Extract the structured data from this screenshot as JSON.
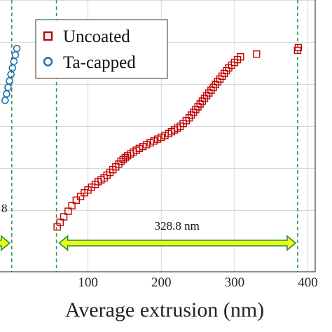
{
  "chart_data": {
    "type": "scatter",
    "xlabel": "Average extrusion (nm)",
    "ylabel": "",
    "title": "",
    "xlim": [
      -20,
      410
    ],
    "x_ticks": [
      "100",
      "200",
      "300",
      "400"
    ],
    "x_tick_values": [
      100,
      200,
      300,
      400
    ],
    "grid": true,
    "legend": "top-left",
    "series": [
      {
        "name": "Uncoated",
        "marker": "square",
        "color": "#c00000",
        "x": [
          58,
          62,
          67,
          73,
          78,
          84,
          90,
          95,
          100,
          105,
          110,
          114,
          118,
          122,
          126,
          130,
          134,
          138,
          142,
          145,
          148,
          151,
          154,
          158,
          162,
          166,
          170,
          175,
          180,
          185,
          190,
          195,
          200,
          205,
          210,
          214,
          218,
          222,
          226,
          230,
          234,
          238,
          241,
          244,
          247,
          250,
          253,
          256,
          259,
          262,
          265,
          268,
          271,
          274,
          277,
          280,
          283,
          286,
          289,
          292,
          296,
          300,
          304,
          308,
          330,
          386,
          387
        ],
        "y": [
          0.015,
          0.04,
          0.07,
          0.1,
          0.13,
          0.16,
          0.18,
          0.2,
          0.215,
          0.23,
          0.245,
          0.26,
          0.27,
          0.28,
          0.295,
          0.31,
          0.325,
          0.34,
          0.355,
          0.37,
          0.38,
          0.39,
          0.4,
          0.41,
          0.42,
          0.43,
          0.44,
          0.45,
          0.46,
          0.47,
          0.48,
          0.49,
          0.5,
          0.51,
          0.52,
          0.53,
          0.54,
          0.55,
          0.56,
          0.575,
          0.59,
          0.605,
          0.62,
          0.635,
          0.65,
          0.665,
          0.68,
          0.695,
          0.71,
          0.725,
          0.74,
          0.755,
          0.77,
          0.785,
          0.8,
          0.815,
          0.83,
          0.845,
          0.86,
          0.875,
          0.89,
          0.905,
          0.92,
          0.935,
          0.95,
          0.97,
          0.985
        ]
      },
      {
        "name": "Ta-capped",
        "marker": "circle",
        "color": "#1f6fad",
        "x": [
          -13,
          -11,
          -9,
          -7,
          -5,
          -3,
          -1,
          1,
          3
        ],
        "y": [
          0.7,
          0.735,
          0.77,
          0.805,
          0.84,
          0.875,
          0.91,
          0.945,
          0.98
        ]
      }
    ],
    "annotations": {
      "span_label": "328.8 nm",
      "span_start": 57,
      "span_end": 386,
      "left_label": "8",
      "guide_lines": [
        -4,
        57,
        386
      ]
    }
  }
}
